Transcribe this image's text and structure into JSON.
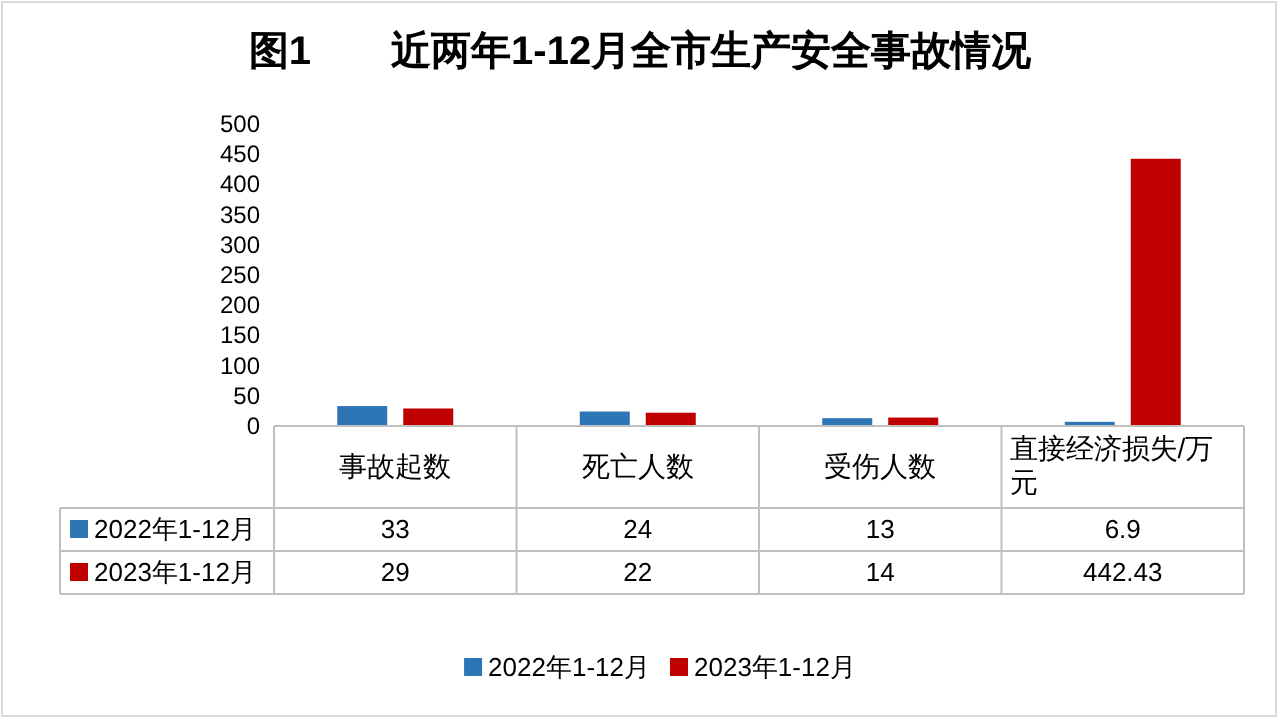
{
  "chart_data": {
    "type": "bar",
    "title": "图1　　近两年1-12月全市生产安全事故情况",
    "categories": [
      "事故起数",
      "死亡人数",
      "受伤人数",
      "直接经济损失/万元"
    ],
    "series": [
      {
        "name": "2022年1-12月",
        "color": "#2e75b6",
        "values": [
          33,
          24,
          13,
          6.9
        ]
      },
      {
        "name": "2023年1-12月",
        "color": "#c00000",
        "values": [
          29,
          22,
          14,
          442.43
        ]
      }
    ],
    "ylim": [
      0,
      500
    ],
    "yticks": [
      0,
      50,
      100,
      150,
      200,
      250,
      300,
      350,
      400,
      450,
      500
    ],
    "data_labels": true,
    "legend": "bottom",
    "grid": false
  }
}
